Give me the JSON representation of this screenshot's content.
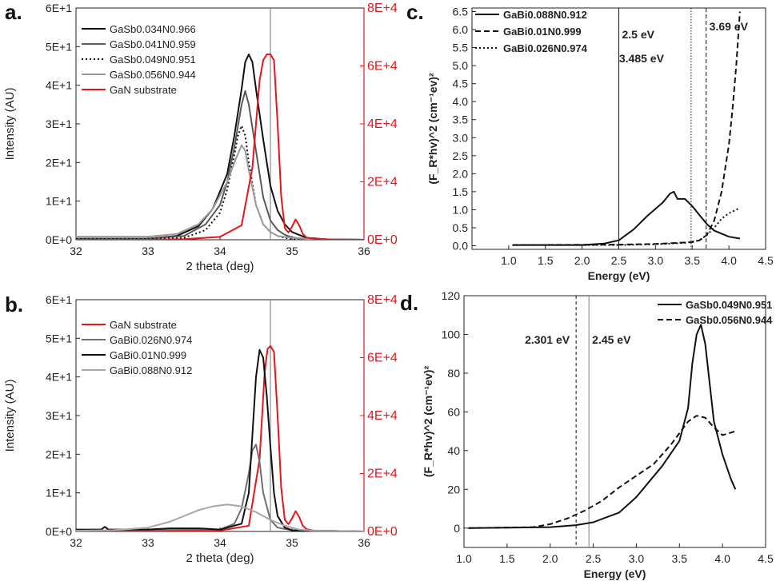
{
  "chart_data": [
    {
      "panel": "a.",
      "type": "line",
      "xlabel": "2 theta (deg)",
      "ylabel": "Intensity (AU)",
      "xlim": [
        32,
        36
      ],
      "ylim": [
        0,
        60
      ],
      "y2lim": [
        0,
        80000
      ],
      "x_ticks": [
        "32",
        "33",
        "34",
        "35",
        "36"
      ],
      "y_ticks": [
        "0E+0",
        "1E+1",
        "2E+1",
        "3E+1",
        "4E+1",
        "5E+1",
        "6E+1"
      ],
      "y2_ticks": [
        "0E+0",
        "2E+4",
        "4E+4",
        "6E+4",
        "8E+4"
      ],
      "vline_x": 34.7,
      "series": [
        {
          "name": "GaSb0.034N0.966",
          "color": "#111111",
          "dash": "solid",
          "axis": "left",
          "x": [
            32.0,
            33.0,
            33.4,
            33.7,
            33.9,
            34.1,
            34.2,
            34.3,
            34.35,
            34.4,
            34.45,
            34.5,
            34.6,
            34.7,
            34.8,
            34.9,
            35.0,
            35.2,
            35.5,
            36.0
          ],
          "y": [
            0.3,
            0.3,
            1.0,
            3.5,
            8,
            17,
            27,
            39,
            46,
            48,
            46,
            39,
            26,
            14,
            7.5,
            4,
            2,
            0.5,
            0.1,
            0.0
          ]
        },
        {
          "name": "GaSb0.041N0.959",
          "color": "#5a5a5a",
          "dash": "solid",
          "axis": "left",
          "x": [
            32.0,
            33.0,
            33.5,
            33.8,
            34.0,
            34.1,
            34.2,
            34.3,
            34.35,
            34.4,
            34.5,
            34.6,
            34.7,
            34.8,
            34.9,
            35.0,
            35.2,
            36.0
          ],
          "y": [
            0.3,
            0.3,
            1.0,
            4,
            9,
            15,
            24,
            35,
            38.5,
            35,
            23,
            11,
            5,
            2.5,
            1.3,
            0.6,
            0.2,
            0.0
          ]
        },
        {
          "name": "GaSb0.049N0.951",
          "color": "#111111",
          "dash": "dotted",
          "axis": "left",
          "x": [
            32.0,
            33.0,
            33.5,
            33.8,
            34.0,
            34.1,
            34.2,
            34.25,
            34.3,
            34.35,
            34.4,
            34.5,
            34.6,
            34.7,
            34.8,
            34.9,
            35.0,
            35.2,
            36.0
          ],
          "y": [
            0.2,
            0.2,
            0.5,
            2.5,
            7,
            13,
            22,
            27,
            29.5,
            27,
            20,
            9,
            4,
            2,
            1,
            0.5,
            0.2,
            0.1,
            0.0
          ]
        },
        {
          "name": "GaSb0.056N0.944",
          "color": "#9a9a9a",
          "dash": "solid",
          "axis": "left",
          "x": [
            32.0,
            33.0,
            33.4,
            33.7,
            33.9,
            34.1,
            34.2,
            34.3,
            34.35,
            34.4,
            34.5,
            34.6,
            34.7,
            34.8,
            35.0,
            35.2,
            36.0
          ],
          "y": [
            0.8,
            0.8,
            1.5,
            4,
            8,
            15,
            20,
            24.5,
            23,
            18,
            9,
            4,
            2,
            1,
            0.5,
            0.2,
            0.0
          ]
        },
        {
          "name": "GaN substrate",
          "color": "#e8141b",
          "dash": "solid",
          "axis": "right",
          "x": [
            32.0,
            33.0,
            33.5,
            34.0,
            34.3,
            34.45,
            34.55,
            34.6,
            34.65,
            34.7,
            34.75,
            34.8,
            34.85,
            34.9,
            34.95,
            35.0,
            35.05,
            35.1,
            35.15,
            35.2,
            35.3,
            35.5,
            36.0
          ],
          "y": [
            0,
            0,
            200,
            1000,
            5000,
            25000,
            55000,
            62000,
            64000,
            64000,
            62000,
            40000,
            15000,
            4000,
            2500,
            4500,
            7000,
            5000,
            2000,
            800,
            300,
            100,
            0
          ]
        }
      ]
    },
    {
      "panel": "b.",
      "type": "line",
      "xlabel": "2 theta (deg)",
      "ylabel": "Intensity (AU)",
      "xlim": [
        32,
        36
      ],
      "ylim": [
        0,
        60
      ],
      "y2lim": [
        0,
        80000
      ],
      "x_ticks": [
        "32",
        "33",
        "34",
        "35",
        "36"
      ],
      "y_ticks": [
        "0E+0",
        "1E+1",
        "2E+1",
        "3E+1",
        "4E+1",
        "5E+1",
        "6E+1"
      ],
      "y2_ticks": [
        "0E+0",
        "2E+4",
        "4E+4",
        "6E+4",
        "8E+4"
      ],
      "vline_x": 34.7,
      "series": [
        {
          "name": "GaN substrate",
          "color": "#e8141b",
          "dash": "solid",
          "axis": "right",
          "x": [
            32.0,
            33.0,
            34.0,
            34.4,
            34.55,
            34.62,
            34.66,
            34.7,
            34.75,
            34.8,
            34.85,
            34.9,
            34.95,
            35.0,
            35.05,
            35.1,
            35.15,
            35.2,
            35.3,
            36.0
          ],
          "y": [
            0,
            0,
            300,
            2000,
            25000,
            55000,
            63000,
            64000,
            62000,
            40000,
            15000,
            4000,
            2500,
            4500,
            7000,
            5000,
            2000,
            800,
            300,
            0
          ]
        },
        {
          "name": "GaBi0.026N0.974",
          "color": "#6e6e6e",
          "dash": "solid",
          "axis": "left",
          "x": [
            32.0,
            33.0,
            34.0,
            34.2,
            34.3,
            34.4,
            34.45,
            34.5,
            34.55,
            34.6,
            34.7,
            34.8,
            35.0,
            36.0
          ],
          "y": [
            0.2,
            0.3,
            0.5,
            2,
            6,
            15,
            21,
            22.5,
            18,
            10,
            3,
            1,
            0.3,
            0.0
          ]
        },
        {
          "name": "GaBi0.01N0.999",
          "color": "#111111",
          "dash": "solid",
          "axis": "left",
          "x": [
            32.0,
            32.35,
            32.4,
            32.45,
            33.0,
            33.3,
            33.7,
            34.0,
            34.3,
            34.4,
            34.45,
            34.5,
            34.55,
            34.6,
            34.65,
            34.7,
            34.75,
            34.8,
            34.9,
            35.0,
            36.0
          ],
          "y": [
            0.5,
            0.5,
            1.2,
            0.5,
            0.5,
            0.8,
            0.8,
            0.5,
            2,
            10,
            25,
            40,
            47,
            45,
            35,
            22,
            10,
            4,
            1,
            0.3,
            0.0
          ]
        },
        {
          "name": "GaBi0.088N0.912",
          "color": "#a8a8a8",
          "dash": "solid",
          "axis": "left",
          "x": [
            32.0,
            32.5,
            33.0,
            33.3,
            33.5,
            33.7,
            33.9,
            34.1,
            34.3,
            34.5,
            34.7,
            34.9,
            35.1,
            35.3,
            36.0
          ],
          "y": [
            0.2,
            0.3,
            1,
            2.5,
            4,
            5.5,
            6.5,
            7,
            6.5,
            5,
            3,
            1.5,
            0.5,
            0.2,
            0.0
          ]
        }
      ]
    },
    {
      "panel": "c.",
      "type": "line",
      "xlabel": "Energy (eV)",
      "ylabel": "(F_R*hv)^2 (cm⁻¹ev)²",
      "xlim": [
        0.5,
        4.5
      ],
      "ylim": [
        -0.1,
        6.6
      ],
      "x_ticks": [
        "1.0",
        "1.5",
        "2.0",
        "2.5",
        "3.0",
        "3.5",
        "4.0",
        "4.5"
      ],
      "y_ticks": [
        "0.0",
        "0.5",
        "1.0",
        "1.5",
        "2.0",
        "2.5",
        "3.0",
        "3.5",
        "4.0",
        "4.5",
        "5.0",
        "5.5",
        "6.0",
        "6.5"
      ],
      "annotations": [
        {
          "text": "2.5 eV",
          "x": 2.5
        },
        {
          "text": "3.485 eV",
          "x": 3.485
        },
        {
          "text": "3.69 eV",
          "x": 3.69
        }
      ],
      "series": [
        {
          "name": "GaBi0.088N0.912",
          "color": "#111111",
          "dash": "solid",
          "x": [
            1.05,
            2.0,
            2.3,
            2.5,
            2.7,
            2.9,
            3.1,
            3.2,
            3.25,
            3.3,
            3.4,
            3.5,
            3.6,
            3.7,
            3.8,
            4.0,
            4.15
          ],
          "y": [
            0.02,
            0.02,
            0.06,
            0.15,
            0.45,
            0.85,
            1.2,
            1.45,
            1.5,
            1.3,
            1.3,
            1.1,
            0.85,
            0.6,
            0.42,
            0.25,
            0.2
          ]
        },
        {
          "name": "GaBi0.01N0.999",
          "color": "#111111",
          "dash": "dashed",
          "x": [
            1.05,
            2.5,
            3.0,
            3.5,
            3.6,
            3.7,
            3.8,
            3.9,
            4.0,
            4.05,
            4.1,
            4.15
          ],
          "y": [
            0.02,
            0.03,
            0.05,
            0.1,
            0.15,
            0.3,
            0.7,
            1.5,
            2.8,
            3.8,
            5.0,
            6.5
          ]
        },
        {
          "name": "GaBi0.026N0.974",
          "color": "#111111",
          "dash": "dotted",
          "x": [
            1.05,
            2.5,
            3.0,
            3.4,
            3.6,
            3.7,
            3.8,
            3.9,
            4.0,
            4.1,
            4.15
          ],
          "y": [
            0.02,
            0.02,
            0.04,
            0.08,
            0.15,
            0.3,
            0.5,
            0.75,
            0.9,
            1.0,
            1.05
          ]
        }
      ]
    },
    {
      "panel": "d.",
      "type": "line",
      "xlabel": "Energy (eV)",
      "ylabel": "(F_R*hv)^2 (cm⁻¹ev)²",
      "xlim": [
        1.0,
        4.5
      ],
      "ylim": [
        -10,
        120
      ],
      "x_ticks": [
        "1.0",
        "1.5",
        "2.0",
        "2.5",
        "3.0",
        "3.5",
        "4.0",
        "4.5"
      ],
      "y_ticks": [
        "0",
        "20",
        "40",
        "60",
        "80",
        "100",
        "120"
      ],
      "annotations": [
        {
          "text": "2.301 eV",
          "x": 2.301
        },
        {
          "text": "2.45 eV",
          "x": 2.45
        }
      ],
      "series": [
        {
          "name": "GaSb0.049N0.951",
          "color": "#111111",
          "dash": "solid",
          "x": [
            1.05,
            2.0,
            2.3,
            2.5,
            2.8,
            3.0,
            3.3,
            3.5,
            3.6,
            3.65,
            3.7,
            3.75,
            3.8,
            3.85,
            3.9,
            4.0,
            4.1,
            4.15
          ],
          "y": [
            0,
            0.5,
            1.5,
            3,
            8,
            16,
            32,
            45,
            62,
            85,
            100,
            105,
            95,
            75,
            55,
            38,
            25,
            20
          ]
        },
        {
          "name": "GaSb0.056N0.944",
          "color": "#111111",
          "dash": "dashed",
          "x": [
            1.05,
            1.8,
            2.0,
            2.2,
            2.4,
            2.6,
            2.8,
            3.0,
            3.2,
            3.4,
            3.6,
            3.7,
            3.8,
            3.9,
            4.0,
            4.15
          ],
          "y": [
            0,
            0.5,
            2,
            5,
            9,
            14,
            21,
            27,
            33,
            43,
            55,
            58,
            57,
            52,
            48,
            50
          ]
        }
      ]
    }
  ]
}
